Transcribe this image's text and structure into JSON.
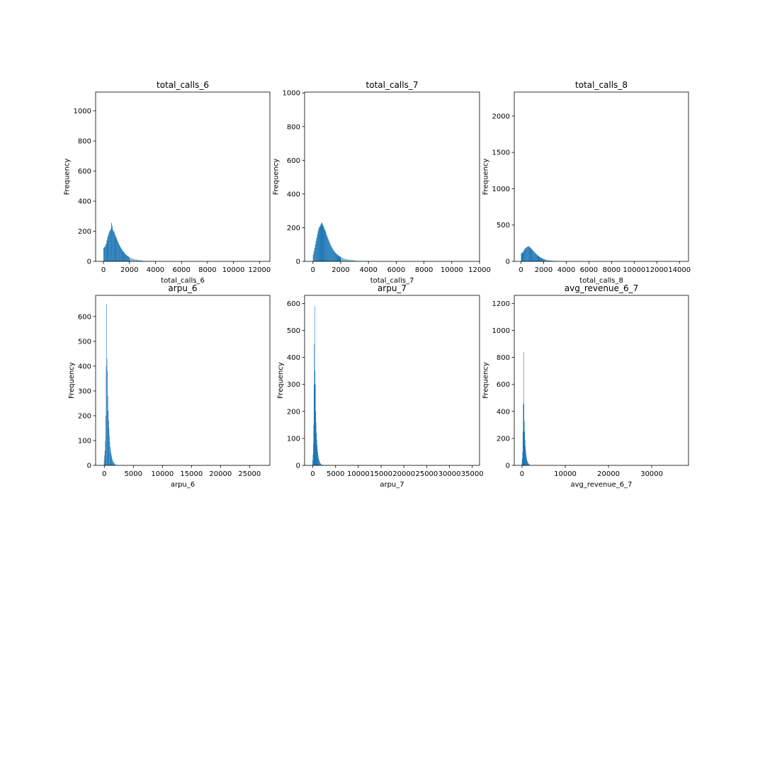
{
  "colors": {
    "bar": "#1f77b4",
    "axes": "#000000",
    "background": "#ffffff"
  },
  "chart_data": [
    {
      "type": "bar",
      "title": "total_calls_6",
      "xlabel": "total_calls_6",
      "ylabel": "Frequency",
      "xlim": [
        -600,
        12800
      ],
      "ylim": [
        0,
        1125
      ],
      "xticks": [
        0,
        2000,
        4000,
        6000,
        8000,
        10000,
        12000
      ],
      "xtick_labels": [
        "0",
        "2000",
        "4000",
        "6000",
        "8000",
        "10000",
        "12000"
      ],
      "yticks": [
        0,
        200,
        400,
        600,
        800,
        1000
      ],
      "ytick_labels": [
        "0",
        "200",
        "400",
        "600",
        "800",
        "1000"
      ],
      "bin_width": 50,
      "bin_starts": [
        0,
        50,
        100,
        150,
        200,
        250,
        300,
        350,
        400,
        450,
        500,
        550,
        600,
        650,
        700,
        750,
        800,
        850,
        900,
        950,
        1000,
        1050,
        1100,
        1150,
        1200,
        1250,
        1300,
        1350,
        1400,
        1450,
        1500,
        1550,
        1600,
        1650,
        1700,
        1750,
        1800,
        1850,
        1900,
        1950,
        2000,
        2100,
        2200,
        2300,
        2400,
        2500,
        2600,
        2700,
        2800,
        2900,
        3000,
        3200,
        3400,
        3600,
        3800,
        4000,
        4200,
        4500,
        5000,
        5500,
        6000
      ],
      "values": [
        90,
        95,
        100,
        110,
        120,
        140,
        160,
        175,
        190,
        200,
        205,
        215,
        255,
        235,
        210,
        200,
        195,
        185,
        170,
        160,
        150,
        140,
        130,
        120,
        110,
        100,
        92,
        85,
        78,
        72,
        66,
        60,
        55,
        50,
        46,
        42,
        38,
        35,
        32,
        29,
        26,
        22,
        19,
        16,
        14,
        12,
        10,
        9,
        8,
        7,
        6,
        5,
        4,
        3,
        3,
        2,
        2,
        1,
        1,
        1,
        1
      ]
    },
    {
      "type": "bar",
      "title": "total_calls_7",
      "xlabel": "total_calls_7",
      "ylabel": "Frequency",
      "xlim": [
        -600,
        12000
      ],
      "ylim": [
        0,
        1005
      ],
      "xticks": [
        0,
        2000,
        4000,
        6000,
        8000,
        10000,
        12000
      ],
      "xtick_labels": [
        "0",
        "2000",
        "4000",
        "6000",
        "8000",
        "10000",
        "12000"
      ],
      "yticks": [
        0,
        200,
        400,
        600,
        800,
        1000
      ],
      "ytick_labels": [
        "0",
        "200",
        "400",
        "600",
        "800",
        "1000"
      ],
      "bin_width": 50,
      "bin_starts": [
        0,
        50,
        100,
        150,
        200,
        250,
        300,
        350,
        400,
        450,
        500,
        550,
        600,
        650,
        700,
        750,
        800,
        850,
        900,
        950,
        1000,
        1050,
        1100,
        1150,
        1200,
        1250,
        1300,
        1350,
        1400,
        1450,
        1500,
        1550,
        1600,
        1650,
        1700,
        1750,
        1800,
        1850,
        1900,
        1950,
        2000,
        2100,
        2200,
        2300,
        2400,
        2500,
        2600,
        2700,
        2800,
        2900,
        3000,
        3200,
        3400,
        3600,
        3800,
        4000,
        4300,
        4800,
        5500,
        6500,
        8000
      ],
      "values": [
        40,
        60,
        80,
        100,
        120,
        140,
        160,
        180,
        195,
        205,
        210,
        220,
        230,
        225,
        215,
        205,
        195,
        185,
        175,
        160,
        150,
        138,
        128,
        118,
        108,
        98,
        90,
        82,
        75,
        68,
        62,
        56,
        51,
        47,
        43,
        39,
        36,
        33,
        30,
        27,
        24,
        21,
        18,
        15,
        13,
        11,
        10,
        9,
        8,
        7,
        6,
        5,
        4,
        3,
        3,
        2,
        2,
        1,
        1,
        1,
        1
      ]
    },
    {
      "type": "bar",
      "title": "total_calls_8",
      "xlabel": "total_calls_8",
      "ylabel": "Frequency",
      "xlim": [
        -600,
        14800
      ],
      "ylim": [
        0,
        2330
      ],
      "xticks": [
        0,
        2000,
        4000,
        6000,
        8000,
        10000,
        12000,
        14000
      ],
      "xtick_labels": [
        "0",
        "2000",
        "4000",
        "6000",
        "8000",
        "10000",
        "12000",
        "14000"
      ],
      "yticks": [
        0,
        500,
        1000,
        1500,
        2000
      ],
      "ytick_labels": [
        "0",
        "500",
        "1000",
        "1500",
        "2000"
      ],
      "bin_width": 60,
      "bin_starts": [
        0,
        60,
        120,
        180,
        240,
        300,
        360,
        420,
        480,
        540,
        600,
        660,
        720,
        780,
        840,
        900,
        960,
        1020,
        1080,
        1140,
        1200,
        1260,
        1320,
        1380,
        1440,
        1500,
        1560,
        1620,
        1680,
        1740,
        1800,
        1860,
        1920,
        1980,
        2040,
        2100,
        2200,
        2300,
        2400,
        2500,
        2600,
        2700,
        2800,
        2900,
        3000,
        3100,
        3200,
        3300
      ],
      "values": [
        110,
        115,
        125,
        140,
        155,
        170,
        180,
        190,
        195,
        200,
        210,
        205,
        200,
        190,
        180,
        170,
        160,
        150,
        140,
        130,
        120,
        110,
        100,
        92,
        84,
        76,
        68,
        62,
        56,
        50,
        45,
        40,
        36,
        32,
        28,
        25,
        22,
        19,
        16,
        14,
        12,
        10,
        8,
        7,
        6,
        5,
        4,
        3
      ]
    },
    {
      "type": "bar",
      "title": "arpu_6",
      "xlabel": "arpu_6",
      "ylabel": "Frequency",
      "xlim": [
        -1500,
        28500
      ],
      "ylim": [
        0,
        685
      ],
      "xticks": [
        0,
        5000,
        10000,
        15000,
        20000,
        25000
      ],
      "xtick_labels": [
        "0",
        "5000",
        "10000",
        "15000",
        "20000",
        "25000"
      ],
      "yticks": [
        0,
        100,
        200,
        300,
        400,
        500,
        600
      ],
      "ytick_labels": [
        "0",
        "100",
        "200",
        "300",
        "400",
        "500",
        "600"
      ],
      "bin_width": 70,
      "bin_starts": [
        -70,
        0,
        70,
        140,
        210,
        280,
        350,
        420,
        490,
        560,
        630,
        700,
        770,
        840,
        910,
        980,
        1050,
        1120,
        1190,
        1260,
        1330,
        1400,
        1470,
        1540,
        1610,
        1680,
        1750,
        1900,
        2100,
        2300
      ],
      "values": [
        20,
        40,
        60,
        100,
        200,
        400,
        650,
        430,
        380,
        280,
        220,
        180,
        150,
        120,
        95,
        75,
        60,
        50,
        40,
        32,
        25,
        20,
        16,
        13,
        10,
        8,
        6,
        4,
        3,
        2
      ]
    },
    {
      "type": "bar",
      "title": "arpu_7",
      "xlabel": "arpu_7",
      "ylabel": "Frequency",
      "xlim": [
        -1800,
        36600
      ],
      "ylim": [
        0,
        630
      ],
      "xticks": [
        0,
        5000,
        10000,
        15000,
        20000,
        25000,
        30000,
        35000
      ],
      "xtick_labels": [
        "0",
        "5000",
        "10000",
        "15000",
        "20000",
        "25000",
        "30000",
        "35000"
      ],
      "yticks": [
        0,
        100,
        200,
        300,
        400,
        500,
        600
      ],
      "ytick_labels": [
        "0",
        "100",
        "200",
        "300",
        "400",
        "500",
        "600"
      ],
      "bin_width": 75,
      "bin_starts": [
        -75,
        0,
        75,
        150,
        225,
        300,
        375,
        450,
        525,
        600,
        675,
        750,
        825,
        900,
        975,
        1050,
        1125,
        1200,
        1275,
        1350,
        1425,
        1500,
        1575,
        1650,
        1725,
        1800,
        1950,
        2100,
        2300
      ],
      "values": [
        20,
        40,
        80,
        150,
        300,
        450,
        590,
        350,
        300,
        200,
        160,
        120,
        95,
        75,
        60,
        48,
        38,
        30,
        24,
        19,
        15,
        12,
        9,
        7,
        5,
        4,
        3,
        2,
        1
      ]
    },
    {
      "type": "bar",
      "title": "avg_revenue_6_7",
      "xlabel": "avg_revenue_6_7",
      "ylabel": "Frequency",
      "xlim": [
        -1800,
        38500
      ],
      "ylim": [
        0,
        1260
      ],
      "xticks": [
        0,
        10000,
        20000,
        30000
      ],
      "xtick_labels": [
        "0",
        "10000",
        "20000",
        "30000"
      ],
      "yticks": [
        0,
        200,
        400,
        600,
        800,
        1000,
        1200
      ],
      "ytick_labels": [
        "0",
        "200",
        "400",
        "600",
        "800",
        "1000",
        "1200"
      ],
      "bin_width": 80,
      "bin_starts": [
        -80,
        0,
        80,
        160,
        240,
        320,
        400,
        480,
        560,
        640,
        720,
        800,
        880,
        960,
        1040,
        1120,
        1200,
        1280,
        1360,
        1440,
        1520,
        1600,
        1700,
        1850,
        2000
      ],
      "values": [
        20,
        50,
        100,
        250,
        450,
        840,
        460,
        330,
        250,
        190,
        140,
        110,
        85,
        65,
        50,
        38,
        30,
        23,
        18,
        13,
        10,
        7,
        5,
        3,
        2
      ]
    }
  ]
}
